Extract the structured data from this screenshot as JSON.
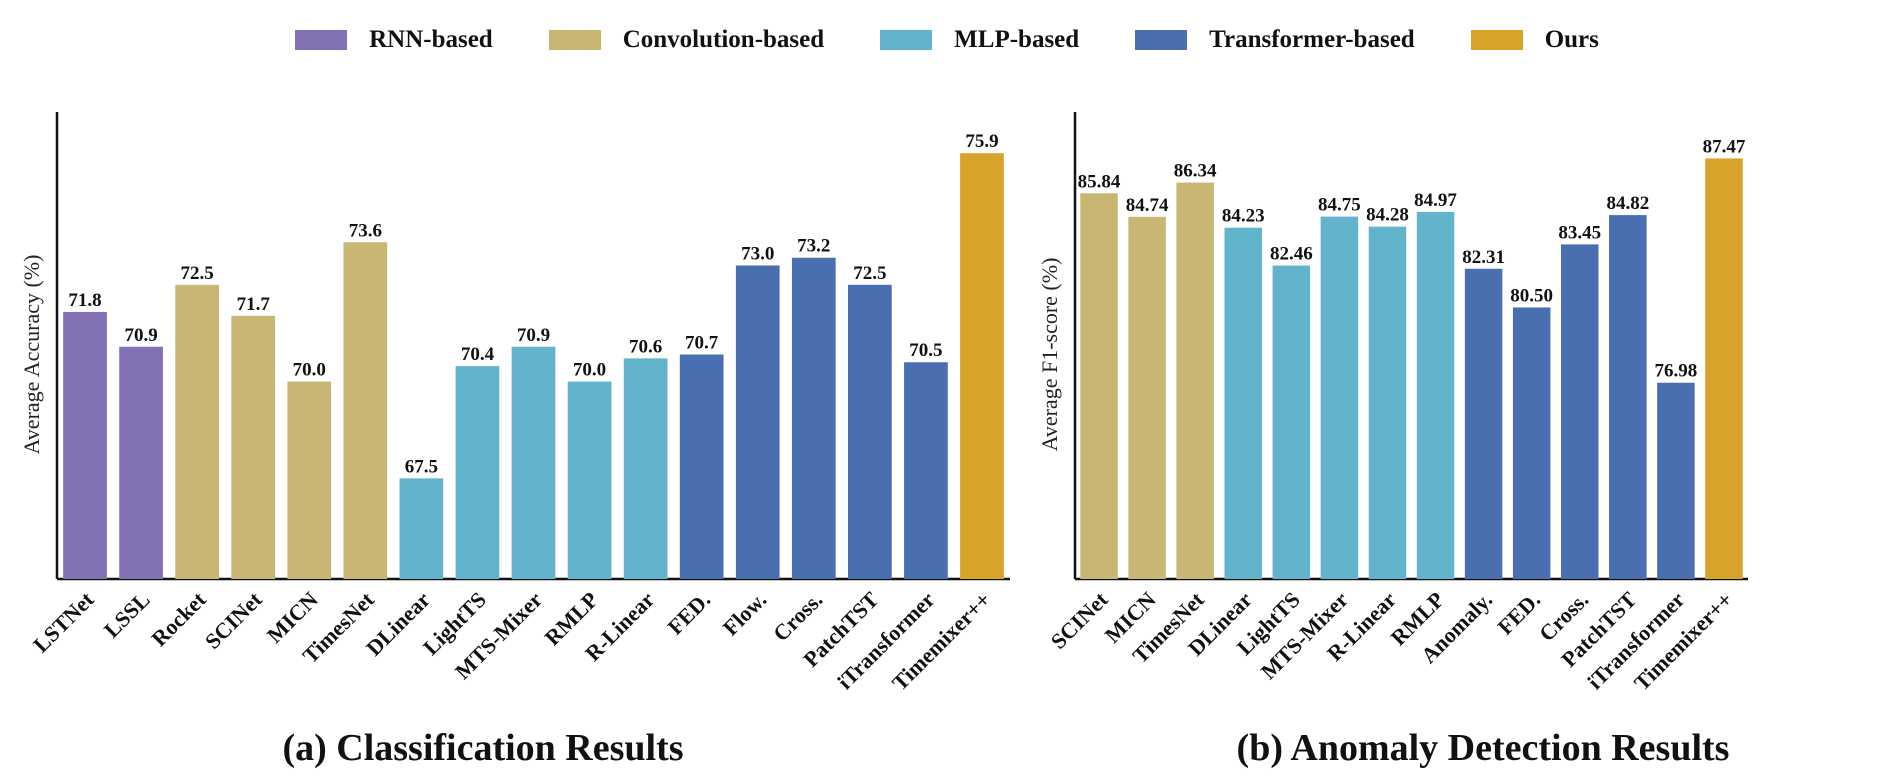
{
  "legend": [
    {
      "label": "RNN-based",
      "color": "#8272b3"
    },
    {
      "label": "Convolution-based",
      "color": "#c9b673"
    },
    {
      "label": "MLP-based",
      "color": "#62b4cd"
    },
    {
      "label": "Transformer-based",
      "color": "#4a6fb0"
    },
    {
      "label": "Ours",
      "color": "#d7a329"
    }
  ],
  "chart_data": [
    {
      "type": "bar",
      "title": "(a) Classification Results",
      "ylabel": "Average Accuracy (%)",
      "xlabel": "",
      "ylim": [
        64.9,
        76.5
      ],
      "grid": false,
      "categories": [
        "LSTNet",
        "LSSL",
        "Rocket",
        "SCINet",
        "MICN",
        "TimesNet",
        "DLinear",
        "LightTS",
        "MTS-Mixer",
        "RMLP",
        "R-Linear",
        "FED.",
        "Flow.",
        "Cross.",
        "PatchTST",
        "iTransformer",
        "Timemixer++"
      ],
      "values": [
        71.8,
        70.9,
        72.5,
        71.7,
        70.0,
        73.6,
        67.5,
        70.4,
        70.9,
        70.0,
        70.6,
        70.7,
        73.0,
        73.2,
        72.5,
        70.5,
        75.9
      ],
      "value_labels": [
        "71.8",
        "70.9",
        "72.5",
        "71.7",
        "70.0",
        "73.6",
        "67.5",
        "70.4",
        "70.9",
        "70.0",
        "70.6",
        "70.7",
        "73.0",
        "73.2",
        "72.5",
        "70.5",
        "75.9"
      ],
      "groups": [
        "RNN-based",
        "RNN-based",
        "Convolution-based",
        "Convolution-based",
        "Convolution-based",
        "Convolution-based",
        "MLP-based",
        "MLP-based",
        "MLP-based",
        "MLP-based",
        "MLP-based",
        "Transformer-based",
        "Transformer-based",
        "Transformer-based",
        "Transformer-based",
        "Transformer-based",
        "Ours"
      ],
      "highlight": "Timemixer++",
      "highlight_color": "#e8221b"
    },
    {
      "type": "bar",
      "title": "(b) Anomaly Detection Results",
      "ylabel": "Average F1-score (%)",
      "xlabel": "",
      "ylim": [
        67.8,
        88.8
      ],
      "grid": false,
      "categories": [
        "SCINet",
        "MICN",
        "TimesNet",
        "DLinear",
        "LightTS",
        "MTS-Mixer",
        "R-Linear",
        "RMLP",
        "Anomaly.",
        "FED.",
        "Cross.",
        "PatchTST",
        "iTransformer",
        "Timemixer++"
      ],
      "values": [
        85.84,
        84.74,
        86.34,
        84.23,
        82.46,
        84.75,
        84.28,
        84.97,
        82.31,
        80.5,
        83.45,
        84.82,
        76.98,
        87.47
      ],
      "value_labels": [
        "85.84",
        "84.74",
        "86.34",
        "84.23",
        "82.46",
        "84.75",
        "84.28",
        "84.97",
        "82.31",
        "80.50",
        "83.45",
        "84.82",
        "76.98",
        "87.47"
      ],
      "groups": [
        "Convolution-based",
        "Convolution-based",
        "Convolution-based",
        "MLP-based",
        "MLP-based",
        "MLP-based",
        "MLP-based",
        "MLP-based",
        "Transformer-based",
        "Transformer-based",
        "Transformer-based",
        "Transformer-based",
        "Transformer-based",
        "Ours"
      ],
      "highlight": "Timemixer++",
      "highlight_color": "#e8221b"
    }
  ]
}
